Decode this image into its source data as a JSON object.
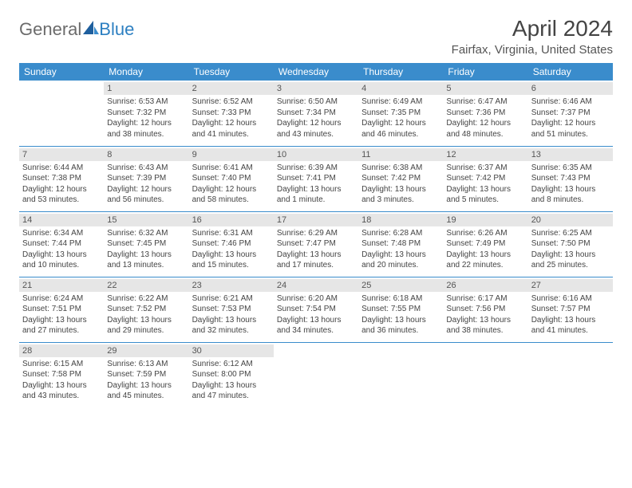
{
  "logo": {
    "text1": "General",
    "text2": "Blue"
  },
  "title": "April 2024",
  "location": "Fairfax, Virginia, United States",
  "colors": {
    "header_bg": "#3a8ccc",
    "header_text": "#ffffff",
    "daynum_bg": "#e6e6e6",
    "border": "#3a8ccc",
    "text": "#444444",
    "page_bg": "#ffffff",
    "logo_gray": "#6b6b6b",
    "logo_blue": "#2c7fc1"
  },
  "fonts": {
    "title_pt": 28,
    "location_pt": 15,
    "dayhead_pt": 12,
    "cell_pt": 10,
    "daynum_pt": 11
  },
  "weekdays": [
    "Sunday",
    "Monday",
    "Tuesday",
    "Wednesday",
    "Thursday",
    "Friday",
    "Saturday"
  ],
  "weeks": [
    [
      null,
      {
        "n": "1",
        "sr": "6:53 AM",
        "ss": "7:32 PM",
        "dl": "12 hours and 38 minutes."
      },
      {
        "n": "2",
        "sr": "6:52 AM",
        "ss": "7:33 PM",
        "dl": "12 hours and 41 minutes."
      },
      {
        "n": "3",
        "sr": "6:50 AM",
        "ss": "7:34 PM",
        "dl": "12 hours and 43 minutes."
      },
      {
        "n": "4",
        "sr": "6:49 AM",
        "ss": "7:35 PM",
        "dl": "12 hours and 46 minutes."
      },
      {
        "n": "5",
        "sr": "6:47 AM",
        "ss": "7:36 PM",
        "dl": "12 hours and 48 minutes."
      },
      {
        "n": "6",
        "sr": "6:46 AM",
        "ss": "7:37 PM",
        "dl": "12 hours and 51 minutes."
      }
    ],
    [
      {
        "n": "7",
        "sr": "6:44 AM",
        "ss": "7:38 PM",
        "dl": "12 hours and 53 minutes."
      },
      {
        "n": "8",
        "sr": "6:43 AM",
        "ss": "7:39 PM",
        "dl": "12 hours and 56 minutes."
      },
      {
        "n": "9",
        "sr": "6:41 AM",
        "ss": "7:40 PM",
        "dl": "12 hours and 58 minutes."
      },
      {
        "n": "10",
        "sr": "6:39 AM",
        "ss": "7:41 PM",
        "dl": "13 hours and 1 minute."
      },
      {
        "n": "11",
        "sr": "6:38 AM",
        "ss": "7:42 PM",
        "dl": "13 hours and 3 minutes."
      },
      {
        "n": "12",
        "sr": "6:37 AM",
        "ss": "7:42 PM",
        "dl": "13 hours and 5 minutes."
      },
      {
        "n": "13",
        "sr": "6:35 AM",
        "ss": "7:43 PM",
        "dl": "13 hours and 8 minutes."
      }
    ],
    [
      {
        "n": "14",
        "sr": "6:34 AM",
        "ss": "7:44 PM",
        "dl": "13 hours and 10 minutes."
      },
      {
        "n": "15",
        "sr": "6:32 AM",
        "ss": "7:45 PM",
        "dl": "13 hours and 13 minutes."
      },
      {
        "n": "16",
        "sr": "6:31 AM",
        "ss": "7:46 PM",
        "dl": "13 hours and 15 minutes."
      },
      {
        "n": "17",
        "sr": "6:29 AM",
        "ss": "7:47 PM",
        "dl": "13 hours and 17 minutes."
      },
      {
        "n": "18",
        "sr": "6:28 AM",
        "ss": "7:48 PM",
        "dl": "13 hours and 20 minutes."
      },
      {
        "n": "19",
        "sr": "6:26 AM",
        "ss": "7:49 PM",
        "dl": "13 hours and 22 minutes."
      },
      {
        "n": "20",
        "sr": "6:25 AM",
        "ss": "7:50 PM",
        "dl": "13 hours and 25 minutes."
      }
    ],
    [
      {
        "n": "21",
        "sr": "6:24 AM",
        "ss": "7:51 PM",
        "dl": "13 hours and 27 minutes."
      },
      {
        "n": "22",
        "sr": "6:22 AM",
        "ss": "7:52 PM",
        "dl": "13 hours and 29 minutes."
      },
      {
        "n": "23",
        "sr": "6:21 AM",
        "ss": "7:53 PM",
        "dl": "13 hours and 32 minutes."
      },
      {
        "n": "24",
        "sr": "6:20 AM",
        "ss": "7:54 PM",
        "dl": "13 hours and 34 minutes."
      },
      {
        "n": "25",
        "sr": "6:18 AM",
        "ss": "7:55 PM",
        "dl": "13 hours and 36 minutes."
      },
      {
        "n": "26",
        "sr": "6:17 AM",
        "ss": "7:56 PM",
        "dl": "13 hours and 38 minutes."
      },
      {
        "n": "27",
        "sr": "6:16 AM",
        "ss": "7:57 PM",
        "dl": "13 hours and 41 minutes."
      }
    ],
    [
      {
        "n": "28",
        "sr": "6:15 AM",
        "ss": "7:58 PM",
        "dl": "13 hours and 43 minutes."
      },
      {
        "n": "29",
        "sr": "6:13 AM",
        "ss": "7:59 PM",
        "dl": "13 hours and 45 minutes."
      },
      {
        "n": "30",
        "sr": "6:12 AM",
        "ss": "8:00 PM",
        "dl": "13 hours and 47 minutes."
      },
      null,
      null,
      null,
      null
    ]
  ],
  "labels": {
    "sunrise": "Sunrise: ",
    "sunset": "Sunset: ",
    "daylight": "Daylight: "
  }
}
